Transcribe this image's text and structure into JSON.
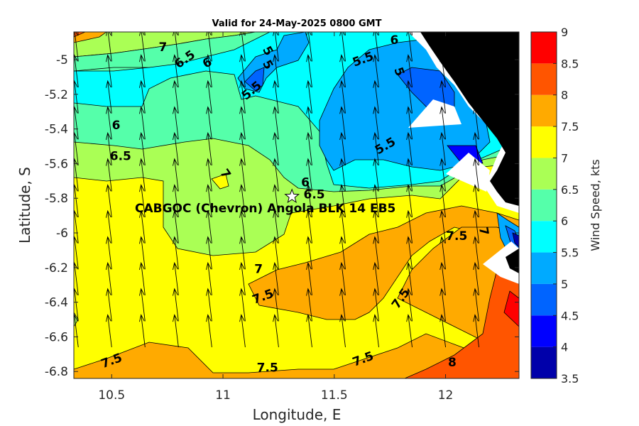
{
  "chart_data": {
    "type": "contour",
    "title": "Valid for 24-May-2025 0800 GMT",
    "xlabel": "Longitude, E",
    "ylabel": "Latitude, S",
    "xlim": [
      10.33,
      12.33
    ],
    "ylim": [
      -6.84,
      -4.84
    ],
    "xticks": [
      10.5,
      11,
      11.5,
      12
    ],
    "xtick_labels": [
      "10.5",
      "11",
      "11.5",
      "12"
    ],
    "yticks": [
      -5,
      -5.2,
      -5.4,
      -5.6,
      -5.8,
      -6,
      -6.2,
      -6.4,
      -6.6,
      -6.8
    ],
    "ytick_labels": [
      "-5",
      "-5.2",
      "-5.4",
      "-5.6",
      "-5.8",
      "-6",
      "-6.2",
      "-6.4",
      "-6.6",
      "-6.8"
    ],
    "colorbar": {
      "label": "Wind Speed, kts",
      "min": 3.5,
      "max": 9,
      "ticks": [
        3.5,
        4,
        4.5,
        5,
        5.5,
        6,
        6.5,
        7,
        7.5,
        8,
        8.5,
        9
      ],
      "tick_labels": [
        "3.5",
        "4",
        "4.5",
        "5",
        "5.5",
        "6",
        "6.5",
        "7",
        "7.5",
        "8",
        "8.5",
        "9"
      ],
      "colors": [
        "#0000aa",
        "#0000ff",
        "#0064ff",
        "#00aaff",
        "#00ffff",
        "#55ffaa",
        "#aaff55",
        "#ffff00",
        "#ffaa00",
        "#ff5500",
        "#ff0000"
      ]
    },
    "contour_labels": [
      {
        "text": "7",
        "lon": 10.73,
        "lat": -4.93,
        "rot": 0
      },
      {
        "text": "6.5",
        "lon": 10.83,
        "lat": -5.0,
        "rot": -35
      },
      {
        "text": "6",
        "lon": 10.93,
        "lat": -5.02,
        "rot": -30
      },
      {
        "text": "5.5",
        "lon": 11.13,
        "lat": -5.18,
        "rot": -40
      },
      {
        "text": "5",
        "lon": 11.2,
        "lat": -5.03,
        "rot": 60
      },
      {
        "text": "5",
        "lon": 11.2,
        "lat": -4.95,
        "rot": 60
      },
      {
        "text": "5.5",
        "lon": 11.63,
        "lat": -5.0,
        "rot": -20
      },
      {
        "text": "6",
        "lon": 11.77,
        "lat": -4.89,
        "rot": 0
      },
      {
        "text": "5",
        "lon": 11.79,
        "lat": -5.07,
        "rot": 70
      },
      {
        "text": "6",
        "lon": 10.52,
        "lat": -5.38,
        "rot": 0
      },
      {
        "text": "6.5",
        "lon": 10.54,
        "lat": -5.56,
        "rot": 0
      },
      {
        "text": "5.5",
        "lon": 11.73,
        "lat": -5.5,
        "rot": -30
      },
      {
        "text": "7",
        "lon": 11.01,
        "lat": -5.66,
        "rot": 55
      },
      {
        "text": "6",
        "lon": 11.37,
        "lat": -5.71,
        "rot": 0
      },
      {
        "text": "6.5",
        "lon": 11.41,
        "lat": -5.78,
        "rot": 0
      },
      {
        "text": "7",
        "lon": 12.17,
        "lat": -5.99,
        "rot": 80
      },
      {
        "text": "7.5",
        "lon": 12.05,
        "lat": -6.02,
        "rot": 0
      },
      {
        "text": "7",
        "lon": 11.16,
        "lat": -6.21,
        "rot": 0
      },
      {
        "text": "7.5",
        "lon": 11.18,
        "lat": -6.37,
        "rot": -20
      },
      {
        "text": "7.5",
        "lon": 11.8,
        "lat": -6.38,
        "rot": -55
      },
      {
        "text": "7.5",
        "lon": 10.5,
        "lat": -6.74,
        "rot": -20
      },
      {
        "text": "7.5",
        "lon": 11.2,
        "lat": -6.78,
        "rot": 0
      },
      {
        "text": "7.5",
        "lon": 11.63,
        "lat": -6.73,
        "rot": -20
      },
      {
        "text": "8",
        "lon": 12.03,
        "lat": -6.75,
        "rot": 0
      }
    ],
    "site": {
      "label": "CABGOC (Chevron)  Angola BLK 14  EB5",
      "lon": 11.31,
      "lat": -5.79
    },
    "wind_arrows": {
      "direction_deg_from_north_toward": -7,
      "lon": [
        10.35,
        10.5,
        10.65,
        10.8,
        10.95,
        11.1,
        11.25,
        11.4,
        11.55,
        11.7,
        11.85,
        12.0,
        12.15
      ],
      "lat": [
        -4.86,
        -5.01,
        -5.16,
        -5.31,
        -5.46,
        -5.61,
        -5.76,
        -5.91,
        -6.06,
        -6.21,
        -6.36,
        -6.51,
        -6.66
      ]
    }
  }
}
